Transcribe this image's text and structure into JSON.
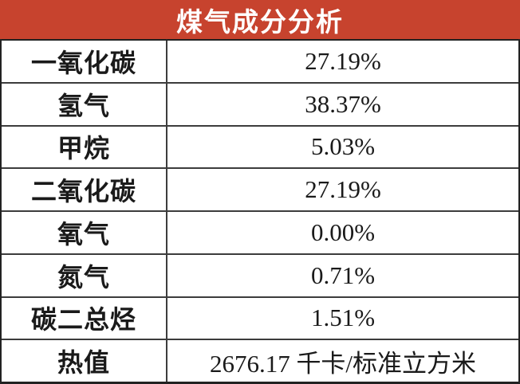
{
  "title": "煤气成分分析",
  "colors": {
    "header_bg": "#c7432e",
    "header_text": "#ffffff",
    "border_inner": "#3c3c3c",
    "border_outer": "#222222",
    "text": "#1a1a1a",
    "row_bg": "#ffffff"
  },
  "table": {
    "rows": [
      {
        "label": "一氧化碳",
        "value": "27.19%"
      },
      {
        "label": "氢气",
        "value": "38.37%"
      },
      {
        "label": "甲烷",
        "value": "5.03%"
      },
      {
        "label": "二氧化碳",
        "value": "27.19%"
      },
      {
        "label": "氧气",
        "value": "0.00%"
      },
      {
        "label": "氮气",
        "value": "0.71%"
      },
      {
        "label": "碳二总烃",
        "value": "1.51%"
      },
      {
        "label": "热值",
        "value": "2676.17 千卡/标准立方米"
      }
    ]
  },
  "chart_data": {
    "type": "table",
    "title": "煤气成分分析",
    "rows": [
      [
        "一氧化碳",
        "27.19%"
      ],
      [
        "氢气",
        "38.37%"
      ],
      [
        "甲烷",
        "5.03%"
      ],
      [
        "二氧化碳",
        "27.19%"
      ],
      [
        "氧气",
        "0.00%"
      ],
      [
        "氮气",
        "0.71%"
      ],
      [
        "碳二总烃",
        "1.51%"
      ],
      [
        "热值",
        "2676.17 千卡/标准立方米"
      ]
    ],
    "percent_values": [
      27.19,
      38.37,
      5.03,
      27.19,
      0.0,
      0.71,
      1.51
    ],
    "heat_value": 2676.17,
    "heat_value_unit": "千卡/标准立方米",
    "legend_position": "none",
    "grid": true
  }
}
